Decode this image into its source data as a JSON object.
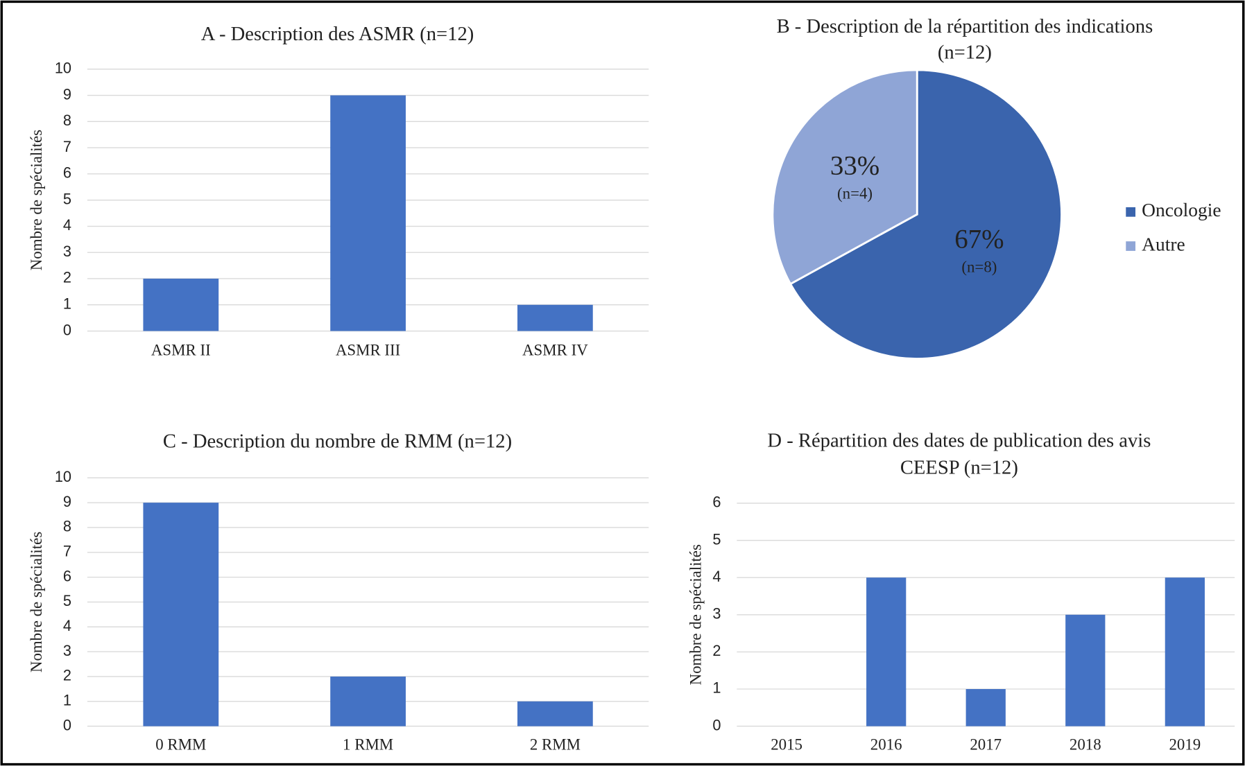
{
  "chart_data": [
    {
      "type": "bar",
      "title": "A - Description des ASMR (n=12)",
      "y_label": "Nombre de spécialités",
      "categories": [
        "ASMR II",
        "ASMR III",
        "ASMR IV"
      ],
      "values": [
        2,
        9,
        1
      ],
      "color": "#4472c4",
      "ylim": [
        0,
        10
      ],
      "yticks": [
        0,
        1,
        2,
        3,
        4,
        5,
        6,
        7,
        8,
        9,
        10
      ],
      "grid": true
    },
    {
      "type": "pie",
      "title": [
        "B - Description de la répartition des indications",
        "(n=12)"
      ],
      "categories": [
        "Oncologie",
        "Autre"
      ],
      "values": [
        67,
        33
      ],
      "value_labels": [
        "67%",
        "33%"
      ],
      "count_labels": [
        "(n=8)",
        "(n=4)"
      ],
      "colors": [
        "#3a64ad",
        "#8fa5d6"
      ],
      "legend": "right"
    },
    {
      "type": "bar",
      "title": "C - Description du nombre de RMM (n=12)",
      "y_label": "Nombre de spécialités",
      "categories": [
        "0 RMM",
        "1 RMM",
        "2 RMM"
      ],
      "values": [
        9,
        2,
        1
      ],
      "color": "#4472c4",
      "ylim": [
        0,
        10
      ],
      "yticks": [
        0,
        1,
        2,
        3,
        4,
        5,
        6,
        7,
        8,
        9,
        10
      ],
      "grid": true
    },
    {
      "type": "bar",
      "title": [
        "D - Répartition des dates de publication des avis",
        "CEESP (n=12)"
      ],
      "y_label": "Nombre de spécialités",
      "categories": [
        "2015",
        "2016",
        "2017",
        "2018",
        "2019"
      ],
      "values": [
        0,
        4,
        1,
        3,
        4
      ],
      "color": "#4472c4",
      "ylim": [
        0,
        6
      ],
      "yticks": [
        0,
        1,
        2,
        3,
        4,
        5,
        6
      ],
      "grid": true
    }
  ]
}
